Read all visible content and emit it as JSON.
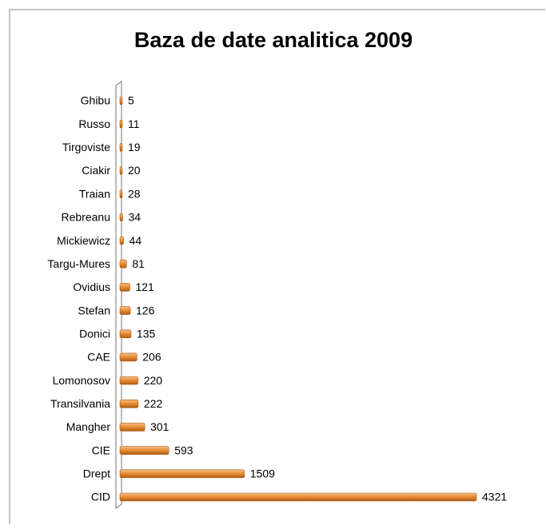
{
  "chart_data": {
    "type": "bar",
    "orientation": "horizontal",
    "title": "Baza de date analitica 2009",
    "categories": [
      "Ghibu",
      "Russo",
      "Tirgoviste",
      "Ciakir",
      "Traian",
      "Rebreanu",
      "Mickiewicz",
      "Targu-Mures",
      "Ovidius",
      "Stefan",
      "Donici",
      "CAE",
      "Lomonosov",
      "Transilvania",
      "Mangher",
      "CIE",
      "Drept",
      "CID"
    ],
    "values": [
      5,
      11,
      19,
      20,
      28,
      34,
      44,
      81,
      121,
      126,
      135,
      206,
      220,
      222,
      301,
      593,
      1509,
      4321
    ],
    "color": "#e8903a"
  }
}
